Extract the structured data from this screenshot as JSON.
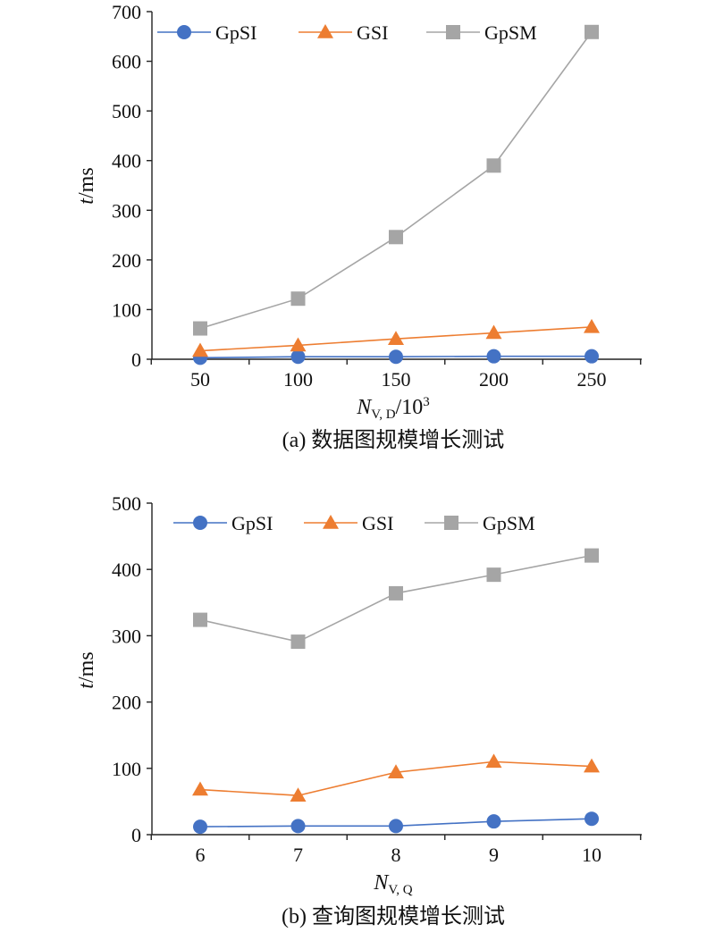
{
  "chart_data": [
    {
      "type": "line",
      "caption": "(a) 数据图规模增长测试",
      "xlabel": "N_{V, D}/10^3",
      "ylabel": "t/ms",
      "categories": [
        "50",
        "100",
        "150",
        "200",
        "250"
      ],
      "ylim": [
        0,
        700
      ],
      "yticks": [
        0,
        100,
        200,
        300,
        400,
        500,
        600,
        700
      ],
      "grid": false,
      "legend": "top",
      "series": [
        {
          "name": "GpSI",
          "marker": "circle",
          "color": "#4472C4",
          "values": [
            3,
            5,
            5,
            6,
            6
          ]
        },
        {
          "name": "GSI",
          "marker": "triangle",
          "color": "#ED7D31",
          "values": [
            17,
            28,
            41,
            53,
            65
          ]
        },
        {
          "name": "GpSM",
          "marker": "square",
          "color": "#A5A5A5",
          "values": [
            62,
            122,
            246,
            390,
            659
          ]
        }
      ]
    },
    {
      "type": "line",
      "caption": "(b) 查询图规模增长测试",
      "xlabel": "N_{V, Q}",
      "ylabel": "t/ms",
      "categories": [
        "6",
        "7",
        "8",
        "9",
        "10"
      ],
      "ylim": [
        0,
        500
      ],
      "yticks": [
        0,
        100,
        200,
        300,
        400,
        500
      ],
      "grid": false,
      "legend": "top",
      "series": [
        {
          "name": "GpSI",
          "marker": "circle",
          "color": "#4472C4",
          "values": [
            12,
            13,
            13,
            20,
            24
          ]
        },
        {
          "name": "GSI",
          "marker": "triangle",
          "color": "#ED7D31",
          "values": [
            68,
            59,
            94,
            110,
            103
          ]
        },
        {
          "name": "GpSM",
          "marker": "square",
          "color": "#A5A5A5",
          "values": [
            324,
            291,
            364,
            392,
            421
          ]
        }
      ]
    }
  ]
}
